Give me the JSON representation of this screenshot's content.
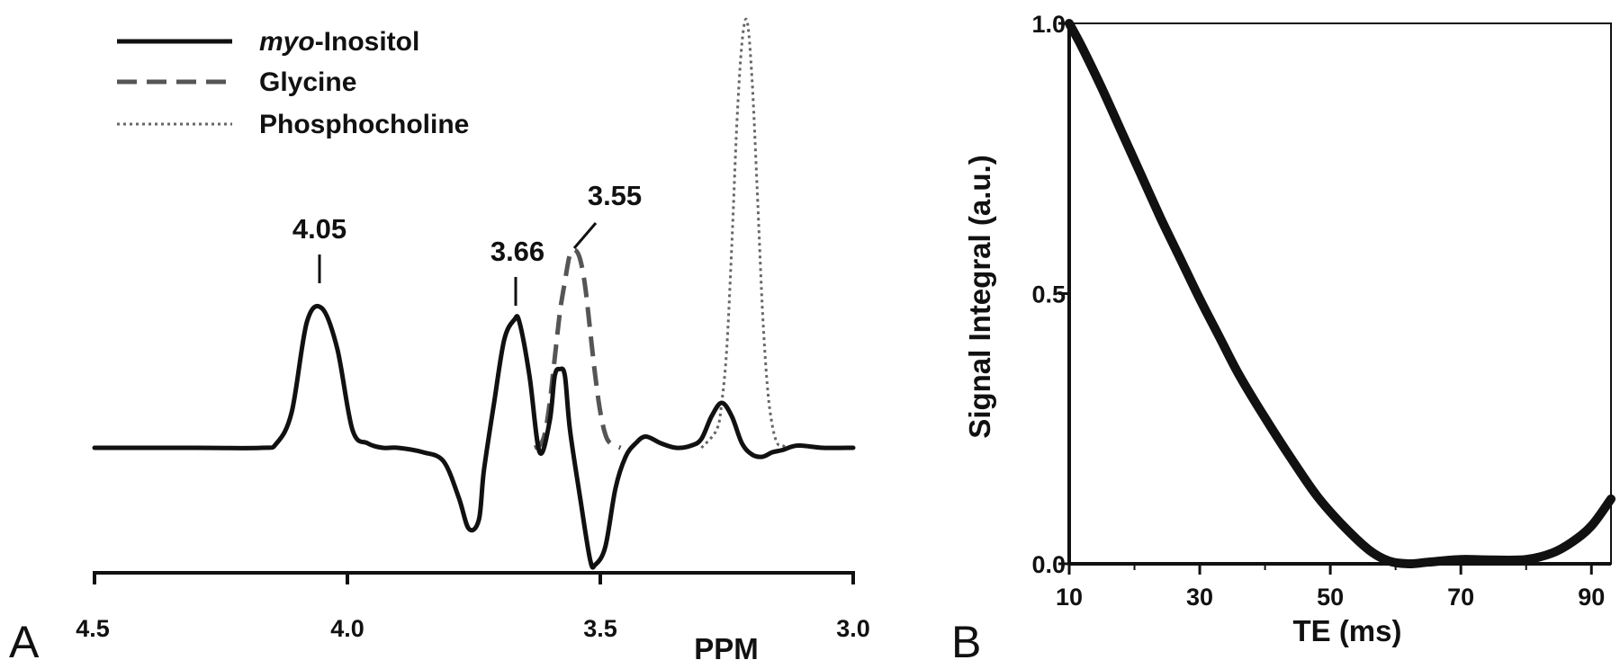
{
  "chart_data": [
    {
      "panel": "A",
      "type": "line",
      "xlabel": "PPM",
      "ylabel": "",
      "xlim": [
        4.5,
        3.0
      ],
      "x_reversed": true,
      "x_ticks": [
        "4.5",
        "4.0",
        "3.5",
        "3.0"
      ],
      "x_tick_values": [
        4.5,
        4.0,
        3.5,
        3.0
      ],
      "y_axis_shown": false,
      "grid": false,
      "legend_position": "top-left",
      "peak_labels": [
        {
          "text": "4.05",
          "x": 4.05
        },
        {
          "text": "3.66",
          "x": 3.66
        },
        {
          "text": "3.55",
          "x": 3.55
        }
      ],
      "series": [
        {
          "name": "myo-Inositol",
          "name_italic_part": "myo",
          "name_rest": "-Inositol",
          "style": "solid",
          "color": "#111111",
          "x": [
            4.5,
            4.3,
            4.17,
            4.14,
            4.11,
            4.08,
            4.05,
            4.02,
            3.99,
            3.96,
            3.93,
            3.9,
            3.85,
            3.81,
            3.78,
            3.76,
            3.74,
            3.73,
            3.71,
            3.69,
            3.67,
            3.66,
            3.64,
            3.62,
            3.6,
            3.59,
            3.58,
            3.57,
            3.56,
            3.54,
            3.52,
            3.51,
            3.49,
            3.47,
            3.45,
            3.43,
            3.41,
            3.38,
            3.35,
            3.32,
            3.3,
            3.28,
            3.26,
            3.24,
            3.22,
            3.2,
            3.18,
            3.16,
            3.14,
            3.11,
            3.06,
            3.0
          ],
          "y": [
            0,
            0,
            0,
            0.01,
            0.08,
            0.28,
            0.31,
            0.22,
            0.04,
            0.01,
            0,
            0,
            -0.01,
            -0.03,
            -0.11,
            -0.18,
            -0.16,
            -0.05,
            0.1,
            0.24,
            0.285,
            0.28,
            0.16,
            -0.01,
            0.06,
            0.16,
            0.175,
            0.16,
            0.04,
            -0.11,
            -0.25,
            -0.26,
            -0.22,
            -0.09,
            -0.02,
            0.01,
            0.025,
            0.01,
            0,
            0.005,
            0.02,
            0.07,
            0.1,
            0.07,
            0.01,
            -0.015,
            -0.02,
            -0.01,
            -0.005,
            0.005,
            0,
            0
          ]
        },
        {
          "name": "Glycine",
          "style": "dashed",
          "color": "#555555",
          "x": [
            3.63,
            3.62,
            3.61,
            3.6,
            3.59,
            3.58,
            3.57,
            3.56,
            3.55,
            3.54,
            3.53,
            3.52,
            3.51,
            3.5,
            3.49,
            3.48,
            3.46
          ],
          "y": [
            0,
            0.005,
            0.03,
            0.1,
            0.2,
            0.3,
            0.37,
            0.43,
            0.44,
            0.42,
            0.36,
            0.26,
            0.16,
            0.08,
            0.03,
            0.01,
            0
          ]
        },
        {
          "name": "Phosphocholine",
          "style": "dotted",
          "color": "#666666",
          "x": [
            3.3,
            3.27,
            3.26,
            3.25,
            3.24,
            3.23,
            3.22,
            3.21,
            3.2,
            3.19,
            3.18,
            3.17,
            3.16,
            3.15,
            3.14,
            3.13
          ],
          "y": [
            0,
            0.04,
            0.1,
            0.22,
            0.45,
            0.72,
            0.9,
            0.95,
            0.82,
            0.58,
            0.32,
            0.14,
            0.05,
            0.01,
            0.005,
            0
          ]
        }
      ]
    },
    {
      "panel": "B",
      "type": "line",
      "xlabel": "TE (ms)",
      "ylabel": "Signal Integral (a.u.)",
      "xlim": [
        10,
        93
      ],
      "ylim": [
        0,
        1.0
      ],
      "x_ticks": [
        "10",
        "30",
        "50",
        "70",
        "90"
      ],
      "x_tick_values": [
        10,
        30,
        50,
        70,
        90
      ],
      "x_minor_tick_values": [
        20,
        40,
        60,
        80
      ],
      "y_ticks": [
        "0.0",
        "0.5",
        "1.0"
      ],
      "y_tick_values": [
        0,
        0.5,
        1.0
      ],
      "grid": false,
      "series": [
        {
          "style": "solid",
          "color": "#111111",
          "x": [
            10,
            12,
            15,
            18,
            21,
            24,
            27,
            30,
            33,
            36,
            40,
            44,
            48,
            52,
            56,
            59,
            62,
            65,
            70,
            75,
            80,
            84,
            87,
            90,
            93
          ],
          "y": [
            1.0,
            0.955,
            0.88,
            0.8,
            0.72,
            0.64,
            0.565,
            0.49,
            0.42,
            0.35,
            0.27,
            0.195,
            0.125,
            0.07,
            0.025,
            0.005,
            0.0,
            0.003,
            0.008,
            0.007,
            0.008,
            0.02,
            0.04,
            0.07,
            0.12
          ]
        }
      ]
    }
  ],
  "panel_labels": {
    "a": "A",
    "b": "B"
  }
}
